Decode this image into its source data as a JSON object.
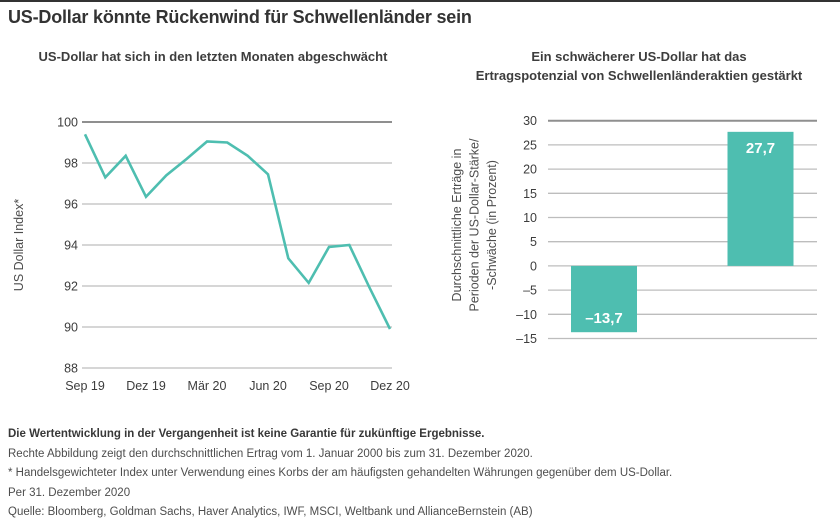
{
  "page": {
    "title": "US-Dollar könnte Rückenwind für Schwellenländer sein"
  },
  "colors": {
    "accent_teal": "#4ebeb0",
    "grid_light": "#bdbdbd",
    "grid_dark": "#8f8f8f",
    "text_dark": "#333333",
    "text_gray": "#4d4d4d",
    "bar_label_white": "#ffffff"
  },
  "chart_data": [
    {
      "type": "line",
      "title": "US-Dollar hat sich in den letzten Monaten abgeschwächt",
      "ylabel": "US Dollar Index*",
      "x": [
        "Sep 19",
        "Okt 19",
        "Nov 19",
        "Dez 19",
        "Jan 20",
        "Feb 20",
        "Mär 20",
        "Apr 20",
        "Mai 20",
        "Jun 20",
        "Jul 20",
        "Aug 20",
        "Sep 20",
        "Okt 20",
        "Nov 20",
        "Dez 20"
      ],
      "x_tick_labels": [
        "Sep 19",
        "Dez 19",
        "Mär 20",
        "Jun 20",
        "Sep 20",
        "Dez 20"
      ],
      "series": [
        {
          "name": "US Dollar Index",
          "values": [
            99.4,
            97.3,
            98.35,
            96.35,
            97.4,
            98.2,
            99.05,
            99.0,
            98.35,
            97.45,
            93.35,
            92.15,
            93.9,
            94.0,
            91.9,
            89.9
          ]
        }
      ],
      "ylim": [
        88,
        100
      ],
      "yticks": [
        100,
        98,
        96,
        94,
        92,
        90,
        88
      ],
      "ytick_labels": [
        "100",
        "98",
        "96",
        "94",
        "92",
        "90",
        "88"
      ],
      "grid": true,
      "legend": "none",
      "line_color": "#4ebeb0"
    },
    {
      "type": "bar",
      "title": "Ein schwächerer US-Dollar hat das Ertragspotenzial von Schwellenländeraktien gestärkt",
      "title_lines": [
        "Ein schwächerer US-Dollar hat das",
        "Ertragspotenzial von Schwellenländeraktien gestärkt"
      ],
      "ylabel": "Durchschnittliche Erträge in Perioden der US-Dollar-Stärke/ -Schwäche (in Prozent)",
      "ylabel_lines": [
        "Durchschnittliche Erträge in",
        "Perioden der US-Dollar-Stärke/",
        "-Schwäche (in Prozent)"
      ],
      "values": [
        -13.7,
        27.7
      ],
      "data_labels": [
        "–13,7",
        "27,7"
      ],
      "ylim": [
        -15,
        30
      ],
      "yticks": [
        30,
        25,
        20,
        15,
        10,
        5,
        0,
        -5,
        -10,
        -15
      ],
      "ytick_labels": [
        "30",
        "25",
        "20",
        "15",
        "10",
        "5",
        "0",
        "–5",
        "–10",
        "–15"
      ],
      "grid": true,
      "legend": "none",
      "bar_color": "#4ebeb0"
    }
  ],
  "footer": {
    "disclaimer_bold": "Die Wertentwicklung in der Vergangenheit ist keine Garantie für zukünftige Ergebnisse.",
    "note_right_chart": "Rechte Abbildung zeigt den durchschnittlichen Ertrag vom 1. Januar 2000 bis zum 31. Dezember 2020.",
    "footnote_index": "* Handelsgewichteter Index unter Verwendung eines Korbs der am häufigsten gehandelten Währungen gegenüber dem US-Dollar.",
    "as_of": "Per 31. Dezember 2020",
    "source": "Quelle: Bloomberg, Goldman Sachs, Haver Analytics, IWF, MSCI, Weltbank und AllianceBernstein (AB)"
  }
}
